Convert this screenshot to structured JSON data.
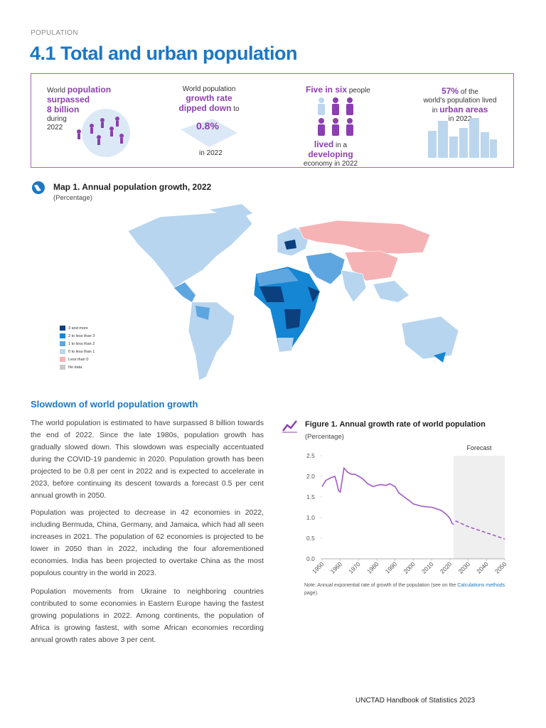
{
  "header": {
    "section": "POPULATION",
    "title": "4.1 Total and urban population"
  },
  "infographic": {
    "items": [
      {
        "lines": [
          "World",
          "population",
          "surpassed",
          "8 billion",
          "during",
          "2022"
        ]
      },
      {
        "lines": [
          "World population",
          "growth rate",
          "dipped down",
          "to",
          "0.8%",
          "in 2022"
        ]
      },
      {
        "lines": [
          "Five in six",
          "people",
          "lived",
          "in a",
          "developing",
          "economy in 2022"
        ]
      },
      {
        "lines": [
          "57%",
          "of the",
          "world's population lived",
          "in",
          "urban areas",
          "in 2022"
        ]
      }
    ]
  },
  "map": {
    "title": "Map 1. Annual population growth, 2022",
    "subtitle": "(Percentage)",
    "legend": [
      {
        "label": "3 and more",
        "color": "#0b3f7e"
      },
      {
        "label": "2 to less than 3",
        "color": "#1586d3"
      },
      {
        "label": "1 to less than 2",
        "color": "#5ea6e0"
      },
      {
        "label": "0 to less than 1",
        "color": "#b7d5ef"
      },
      {
        "label": "Less than 0",
        "color": "#f6b3b5"
      },
      {
        "label": "No data",
        "color": "#c9c9c9"
      }
    ]
  },
  "section": {
    "heading": "Slowdown of world population growth",
    "paragraphs": [
      "The world population is estimated to have surpassed 8 billion towards the end of 2022. Since the late 1980s, population growth has gradually slowed down. This slowdown was especially accentuated during the COVID-19 pandemic in 2020. Population growth has been projected to be 0.8 per cent in 2022 and is expected to accelerate in 2023, before continuing its descent towards a forecast 0.5 per cent annual growth in 2050.",
      "Population was projected to decrease in 42 economies in 2022, including Bermuda, China, Germany, and Jamaica, which had all seen increases in 2021. The population of 62 economies is projected to be lower in 2050 than in 2022, including the four aforementioned economies. India has been projected to overtake China as the most populous country in the world in 2023.",
      "Population movements from Ukraine to neighboring countries contributed to some economies in Eastern Europe having the fastest growing populations in 2022. Among continents, the population of Africa is growing fastest, with some African economies recording annual growth rates above 3 per cent."
    ]
  },
  "chart_data": {
    "type": "line",
    "title": "Figure 1. Annual growth rate of world population",
    "subtitle": "(Percentage)",
    "annotation": "Forecast",
    "forecast_span": [
      2022,
      2050
    ],
    "x": [
      1950,
      1952,
      1955,
      1957,
      1958,
      1959,
      1960,
      1962,
      1964,
      1966,
      1968,
      1970,
      1972,
      1975,
      1978,
      1980,
      1982,
      1985,
      1987,
      1990,
      1992,
      1995,
      1998,
      2000,
      2005,
      2010,
      2015,
      2018,
      2020,
      2021,
      2022,
      2023,
      2030,
      2040,
      2050
    ],
    "series": [
      {
        "color": "#a259c7",
        "dashed": false,
        "values": [
          1.75,
          1.9,
          1.97,
          2.0,
          1.85,
          1.65,
          1.62,
          2.2,
          2.1,
          2.05,
          2.05,
          2.0,
          1.95,
          1.82,
          1.75,
          1.78,
          1.8,
          1.78,
          1.82,
          1.75,
          1.6,
          1.5,
          1.4,
          1.33,
          1.27,
          1.25,
          1.18,
          1.08,
          0.98,
          0.87,
          0.83,
          null,
          null,
          null,
          null
        ]
      },
      {
        "color": "#a259c7",
        "dashed": true,
        "values": [
          null,
          null,
          null,
          null,
          null,
          null,
          null,
          null,
          null,
          null,
          null,
          null,
          null,
          null,
          null,
          null,
          null,
          null,
          null,
          null,
          null,
          null,
          null,
          null,
          null,
          null,
          null,
          null,
          null,
          null,
          null,
          0.92,
          0.78,
          0.63,
          0.48
        ]
      }
    ],
    "xlim": [
      1950,
      2050
    ],
    "xticks": [
      1950,
      1960,
      1970,
      1980,
      1990,
      2000,
      2010,
      2020,
      2030,
      2040,
      2050
    ],
    "ylim": [
      0,
      2.5
    ],
    "yticks": [
      {
        "value": 0,
        "label": "0.0"
      },
      0.5,
      {
        "value": 1,
        "label": "1.0"
      },
      1.5,
      {
        "value": 2,
        "label": "2.0"
      },
      2.5
    ],
    "grid": false,
    "note": {
      "text": "Note: Annual exponential rate of growth of the population (see on the",
      "link": "Calculations methods",
      "end": "page)."
    }
  },
  "footer": "UNCTAD Handbook of Statistics 2023"
}
